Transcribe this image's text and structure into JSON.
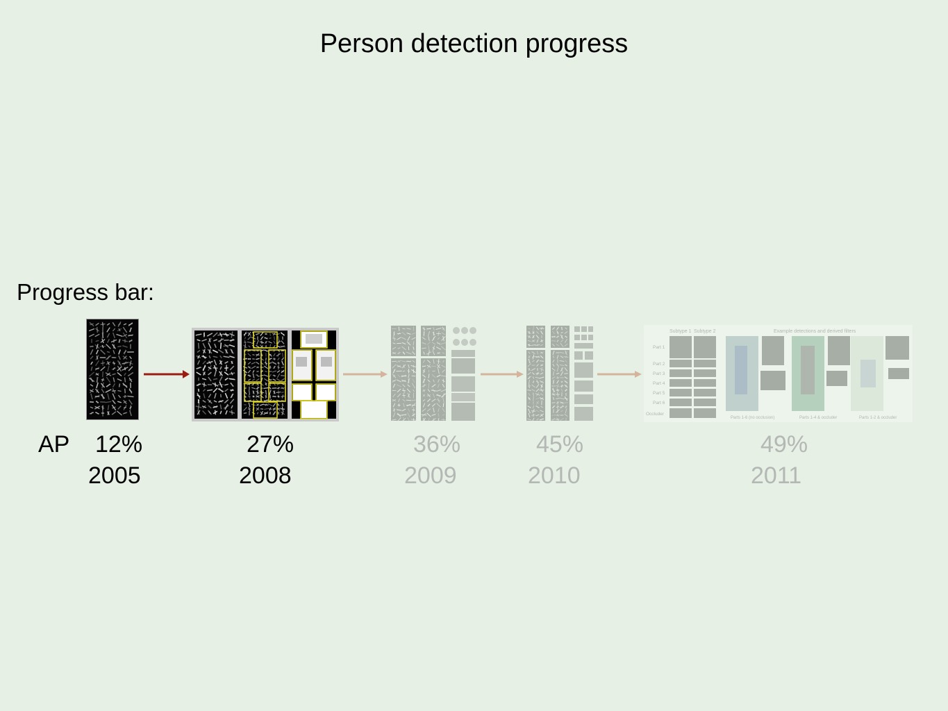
{
  "title": "Person detection progress",
  "subtitle": "Progress bar:",
  "ap_label": "AP",
  "milestones": [
    {
      "year": "2005",
      "ap": "12%",
      "highlighted": true
    },
    {
      "year": "2008",
      "ap": "27%",
      "highlighted": true
    },
    {
      "year": "2009",
      "ap": "36%",
      "highlighted": false
    },
    {
      "year": "2010",
      "ap": "45%",
      "highlighted": false
    },
    {
      "year": "2011",
      "ap": "49%",
      "highlighted": false
    }
  ],
  "figure_2011": {
    "subtype1": "Subtype 1",
    "subtype2": "Subtype 2",
    "example_header": "Example detections and derived filters",
    "part_labels": [
      "Part 1",
      "Part 2",
      "Part 3",
      "Part 4",
      "Part 5",
      "Part 6",
      "Occluder"
    ],
    "captions": [
      "Parts 1-6 (no occlusion)",
      "Parts 1-4 & occluder",
      "Parts 1-2 & occluder"
    ]
  },
  "colors": {
    "background": "#e6f0e4",
    "active_arrow": "#9b1c10",
    "faded_arrow": "#d4b49c",
    "highlight_box": "#e8e020"
  }
}
